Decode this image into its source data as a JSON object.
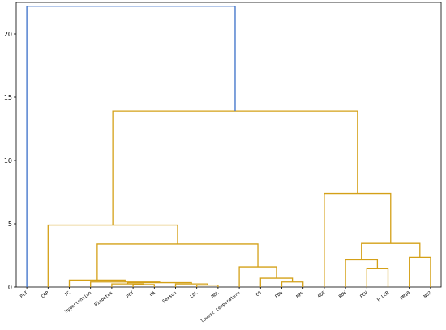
{
  "chart_data": {
    "type": "dendrogram",
    "title": "",
    "xlabel": "",
    "ylabel": "",
    "ylim": [
      0,
      22.5
    ],
    "yticks": [
      0,
      5,
      10,
      15,
      20
    ],
    "grid": false,
    "colors": {
      "top": "#3a6fc8",
      "cluster": "#d4a017",
      "axis": "#000000"
    },
    "leaves": [
      "PLT",
      "CRP",
      "TC",
      "Hypertension",
      "Diabetes",
      "PCT",
      "UA",
      "Season",
      "LDL",
      "HDL",
      "lowest temperature",
      "CO",
      "PDW",
      "MPV",
      "AGE",
      "RDW",
      "PCV",
      "P-LCR",
      "PM10",
      "NO2"
    ],
    "links": [
      {
        "l": 8,
        "r": 9,
        "h": 0.15,
        "color": "cluster"
      },
      {
        "l": 7,
        "r": 20,
        "h": 0.25,
        "color": "cluster"
      },
      {
        "l": 5,
        "r": 6,
        "h": 0.2,
        "color": "cluster"
      },
      {
        "l": 4,
        "r": 22,
        "h": 0.25,
        "color": "cluster"
      },
      {
        "l": 23,
        "r": 21,
        "h": 0.35,
        "color": "cluster"
      },
      {
        "l": 3,
        "r": 24,
        "h": 0.4,
        "color": "cluster"
      },
      {
        "l": 2,
        "r": 25,
        "h": 0.55,
        "color": "cluster"
      },
      {
        "l": 12,
        "r": 13,
        "h": 0.4,
        "color": "cluster"
      },
      {
        "l": 11,
        "r": 27,
        "h": 0.7,
        "color": "cluster"
      },
      {
        "l": 10,
        "r": 28,
        "h": 1.6,
        "color": "cluster"
      },
      {
        "l": 26,
        "r": 29,
        "h": 3.4,
        "color": "cluster"
      },
      {
        "l": 1,
        "r": 30,
        "h": 4.9,
        "color": "cluster"
      },
      {
        "l": 16,
        "r": 17,
        "h": 1.45,
        "color": "cluster"
      },
      {
        "l": 15,
        "r": 32,
        "h": 2.15,
        "color": "cluster"
      },
      {
        "l": 18,
        "r": 19,
        "h": 2.35,
        "color": "cluster"
      },
      {
        "l": 33,
        "r": 34,
        "h": 3.45,
        "color": "cluster"
      },
      {
        "l": 14,
        "r": 35,
        "h": 7.4,
        "color": "cluster"
      },
      {
        "l": 31,
        "r": 36,
        "h": 13.9,
        "color": "cluster"
      },
      {
        "l": 0,
        "r": 37,
        "h": 22.2,
        "color": "top"
      }
    ]
  }
}
